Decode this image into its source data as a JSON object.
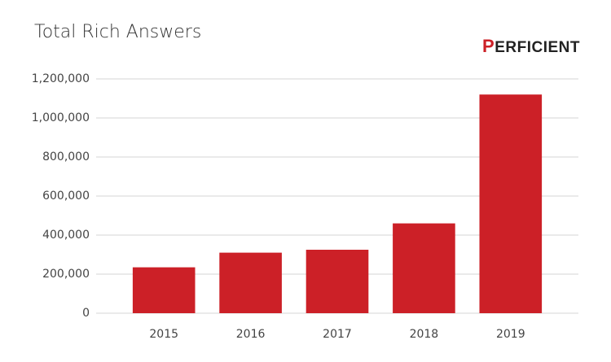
{
  "logo": "PERFICIENT",
  "chart_data": {
    "type": "bar",
    "title": "Total Rich Answers",
    "categories": [
      "2015",
      "2016",
      "2017",
      "2018",
      "2019"
    ],
    "values": [
      235000,
      310000,
      325000,
      460000,
      1120000
    ],
    "color": "#cc2027",
    "ylim": [
      0,
      1200000
    ],
    "yticks": [
      0,
      {
        "value": 200000,
        "label": "200,000"
      },
      {
        "value": 400000,
        "label": "400,000"
      },
      {
        "value": 600000,
        "label": "600,000"
      },
      {
        "value": 800000,
        "label": "800,000"
      },
      {
        "value": 1000000,
        "label": "1,000,000"
      },
      {
        "value": 1200000,
        "label": "1,200,000"
      }
    ],
    "grid": true
  }
}
